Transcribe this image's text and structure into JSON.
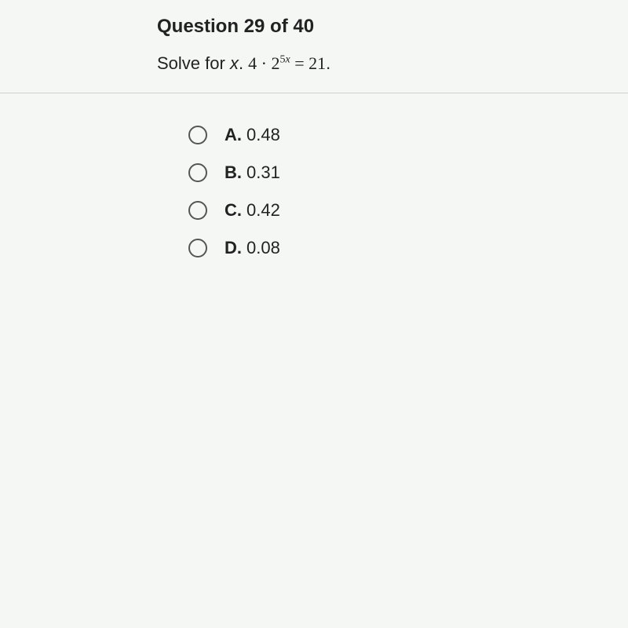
{
  "header": "Question 29 of 40",
  "prompt_prefix": "Solve for ",
  "prompt_var": "x",
  "prompt_colon": ". ",
  "eqn_coeff": "4 · 2",
  "eqn_exp_num": "5",
  "eqn_exp_var": "x",
  "eqn_rest": " = 21",
  "eqn_period": ".",
  "options": [
    {
      "letter": "A.",
      "value": "0.48"
    },
    {
      "letter": "B.",
      "value": "0.31"
    },
    {
      "letter": "C.",
      "value": "0.42"
    },
    {
      "letter": "D.",
      "value": "0.08"
    }
  ],
  "colors": {
    "text": "#222222",
    "divider": "#d0d0d0",
    "radio_border": "#555555",
    "background": "#f5f7f5"
  }
}
